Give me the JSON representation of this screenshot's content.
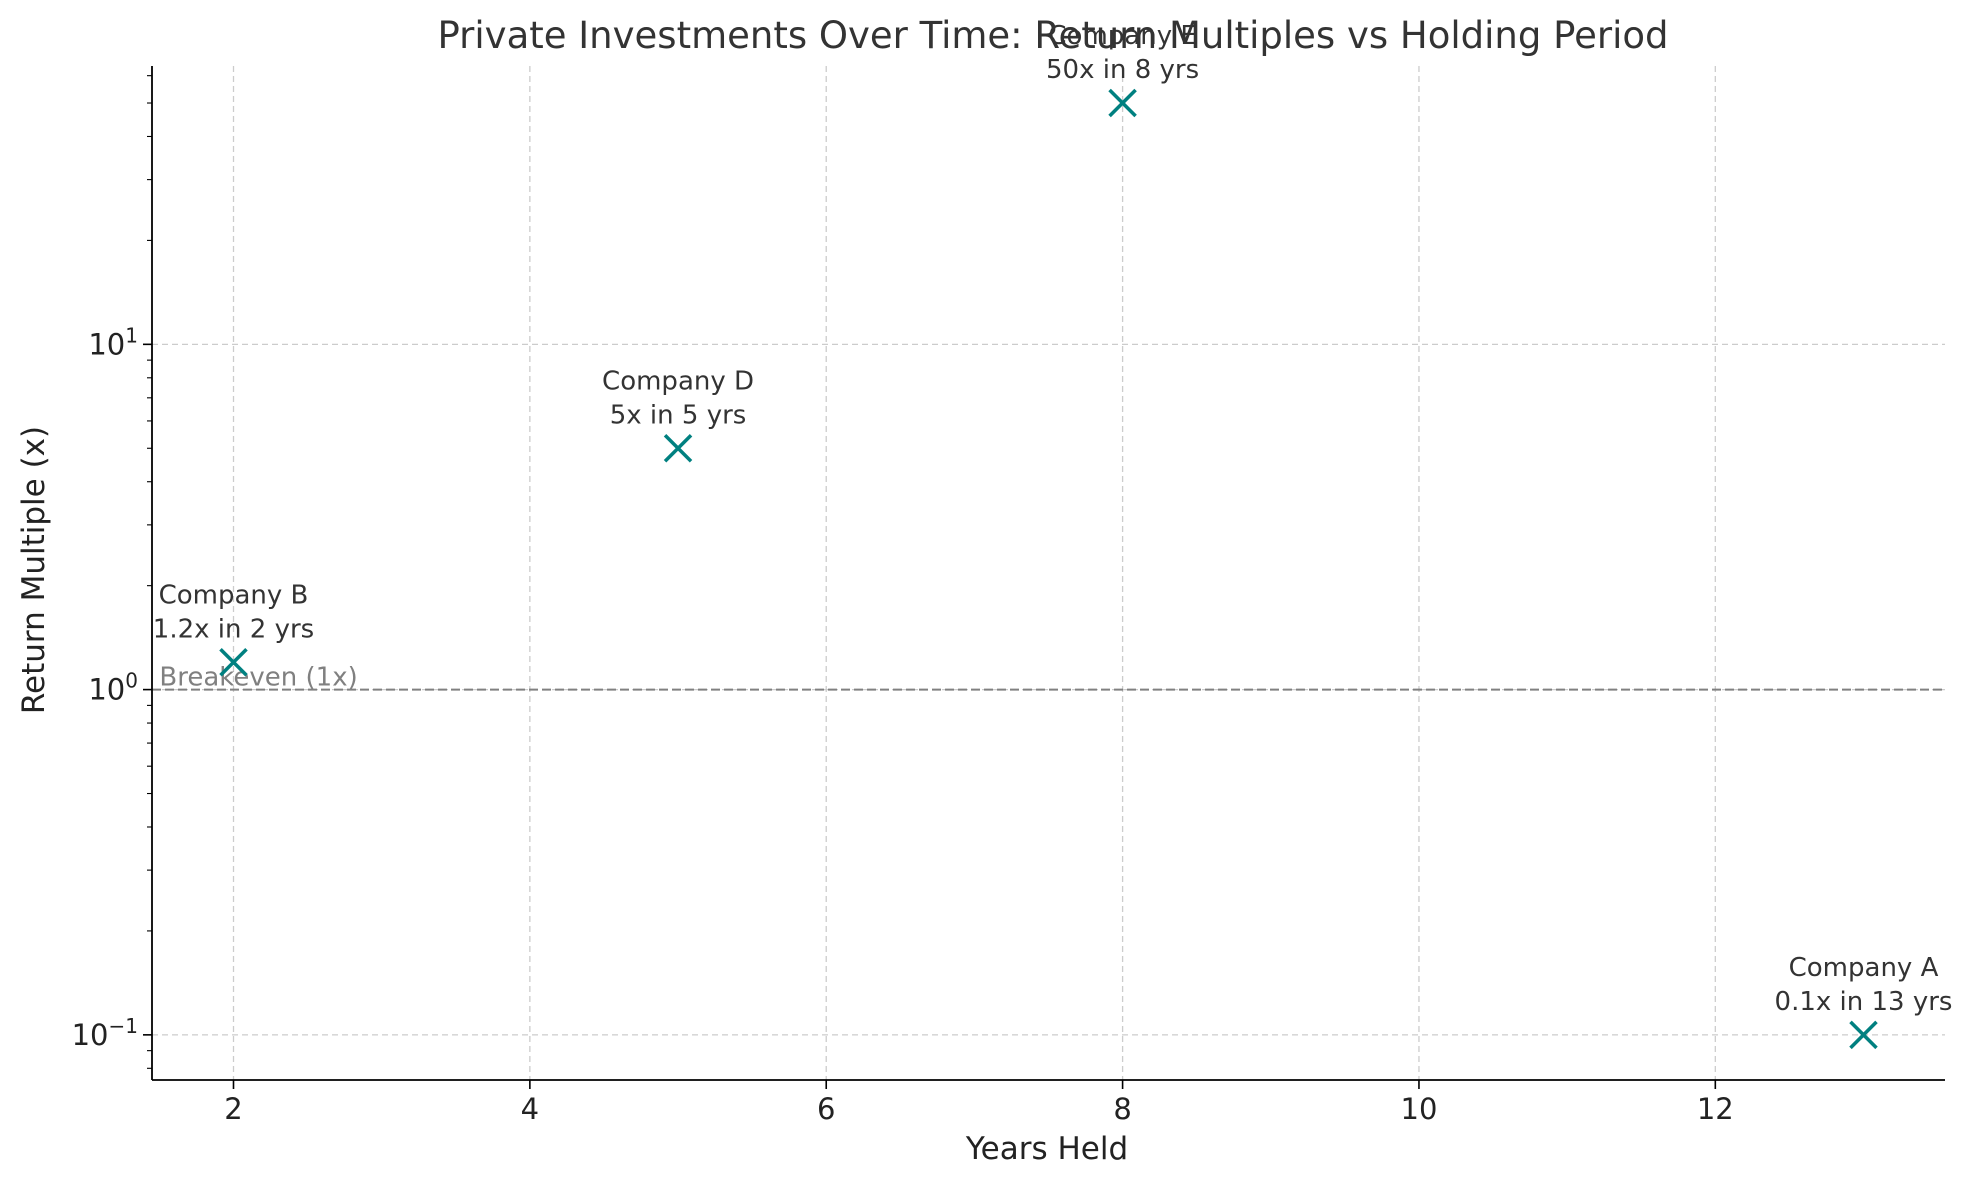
{
  "chart_data": {
    "type": "scatter",
    "title": "Private Investments Over Time: Return Multiples vs Holding Period",
    "xlabel": "Years Held",
    "ylabel": "Return Multiple (x)",
    "xlim": [
      1.45,
      13.55
    ],
    "ylim": [
      0.074,
      64
    ],
    "yscale": "log",
    "grid": true,
    "x_ticks": [
      2,
      4,
      6,
      8,
      10,
      12
    ],
    "y_ticks": [
      {
        "value": 0.1,
        "base": "10",
        "exp": "−1"
      },
      {
        "value": 1,
        "base": "10",
        "exp": "0"
      },
      {
        "value": 10,
        "base": "10",
        "exp": "1"
      }
    ],
    "marker": "x",
    "marker_color": "#008080",
    "points": [
      {
        "x": 2,
        "y": 1.2,
        "label": "Company B",
        "detail": "1.2x in 2 yrs"
      },
      {
        "x": 5,
        "y": 5,
        "label": "Company D",
        "detail": "5x in 5 yrs"
      },
      {
        "x": 8,
        "y": 50,
        "label": "Company E",
        "detail": "50x in 8 yrs"
      },
      {
        "x": 13,
        "y": 0.1,
        "label": "Company A",
        "detail": "0.1x in 13 yrs"
      }
    ],
    "reference_line": {
      "y": 1,
      "label": "Breakeven (1x)",
      "color": "#808080"
    }
  }
}
